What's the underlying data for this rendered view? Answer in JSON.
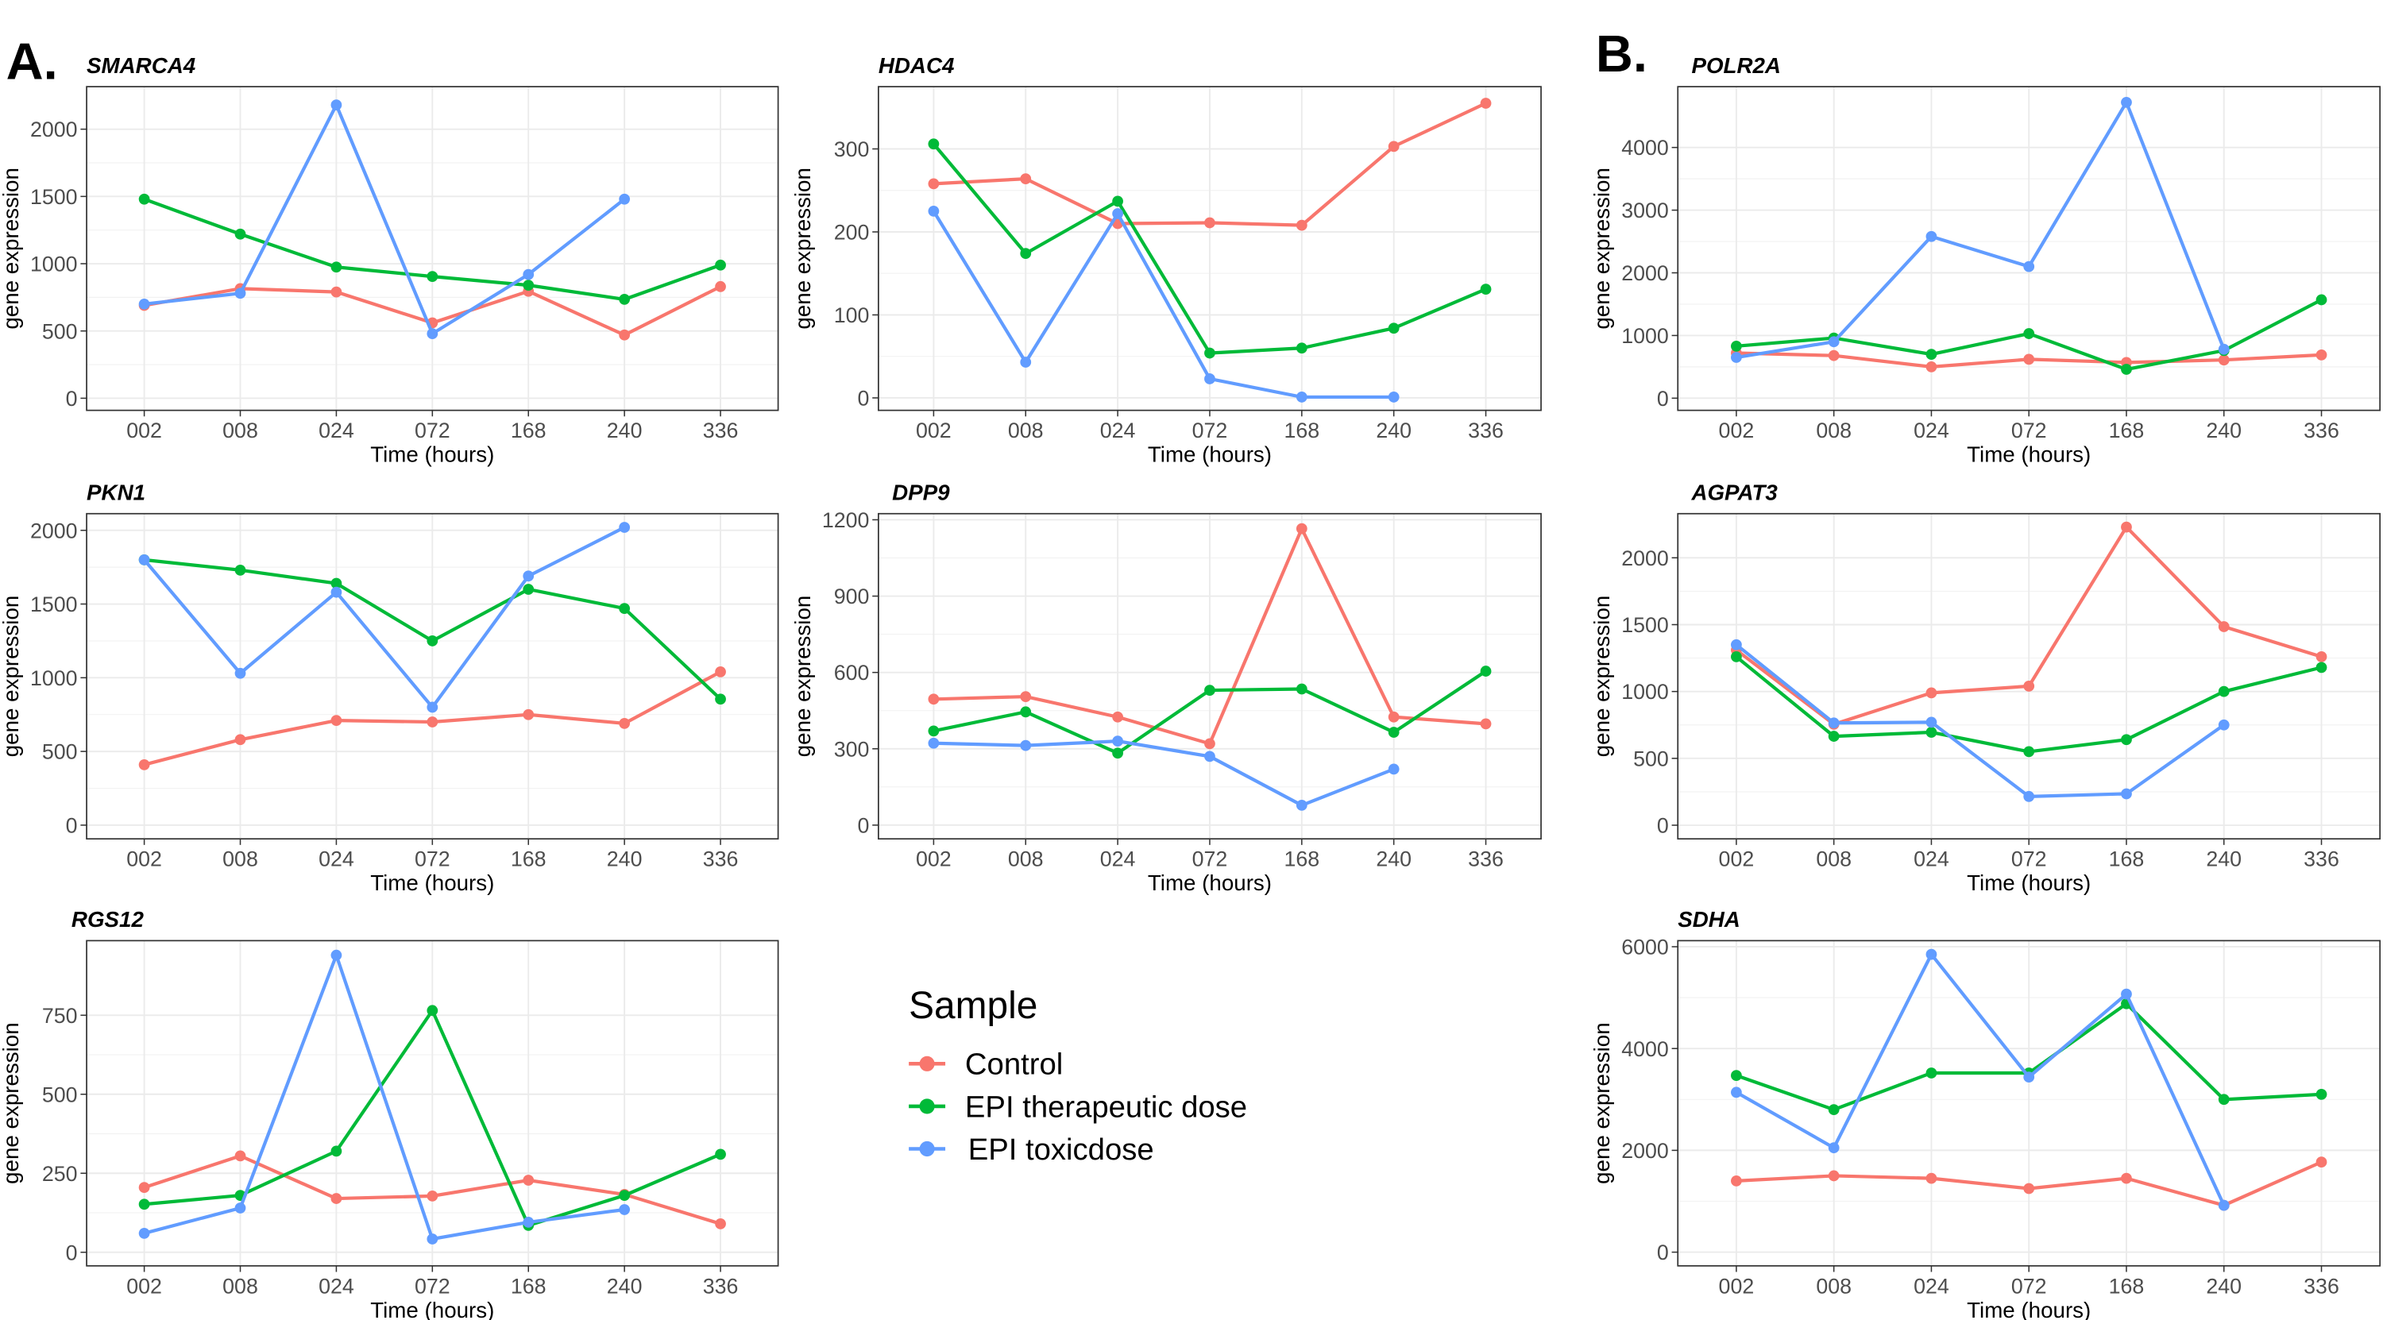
{
  "panel_labels": [
    "A.",
    "B."
  ],
  "legend": {
    "title": "Sample",
    "entries": [
      {
        "name": "Control",
        "color": "#F8766D"
      },
      {
        "name": "EPI therapeutic dose",
        "color": "#00BA38"
      },
      {
        "name": "EPI toxicdose",
        "color": "#619CFF"
      }
    ]
  },
  "chart_data": [
    {
      "type": "line",
      "title": "SMARCA4",
      "xlabel": "Time (hours)",
      "ylabel": "gene expression",
      "categories": [
        "002",
        "008",
        "024",
        "072",
        "168",
        "240",
        "336"
      ],
      "series": [
        {
          "values": [
            690,
            815,
            790,
            560,
            795,
            470,
            830
          ]
        },
        {
          "values": [
            1480,
            1220,
            975,
            905,
            840,
            735,
            990
          ]
        },
        {
          "values": [
            700,
            780,
            2180,
            480,
            920,
            1480,
            null
          ]
        }
      ],
      "ylim": [
        -90,
        2316
      ],
      "yticks": [
        0,
        500,
        1000,
        1500,
        2000
      ],
      "grid": true
    },
    {
      "type": "line",
      "title": "HDAC4",
      "xlabel": "Time (hours)",
      "ylabel": "gene expression",
      "categories": [
        "002",
        "008",
        "024",
        "072",
        "168",
        "240",
        "336"
      ],
      "series": [
        {
          "values": [
            258,
            264,
            210,
            211,
            208,
            303,
            355
          ]
        },
        {
          "values": [
            306,
            174,
            237,
            54,
            60,
            84,
            131
          ]
        },
        {
          "values": [
            225,
            43,
            222,
            23,
            1,
            1,
            null
          ]
        }
      ],
      "ylim": [
        -15,
        375
      ],
      "yticks": [
        0,
        100,
        200,
        300
      ],
      "grid": true
    },
    {
      "type": "line",
      "title": "POLR2A",
      "xlabel": "Time (hours)",
      "ylabel": "gene expression",
      "categories": [
        "002",
        "008",
        "024",
        "072",
        "168",
        "240",
        "336"
      ],
      "series": [
        {
          "values": [
            720,
            680,
            500,
            620,
            570,
            610,
            690
          ]
        },
        {
          "values": [
            830,
            960,
            700,
            1030,
            460,
            760,
            1570
          ]
        },
        {
          "values": [
            650,
            900,
            2580,
            2100,
            4720,
            780,
            null
          ]
        }
      ],
      "ylim": [
        -194,
        4970
      ],
      "yticks": [
        0,
        1000,
        2000,
        3000,
        4000
      ],
      "grid": true
    },
    {
      "type": "line",
      "title": "PKN1",
      "xlabel": "Time (hours)",
      "ylabel": "gene expression",
      "categories": [
        "002",
        "008",
        "024",
        "072",
        "168",
        "240",
        "336"
      ],
      "series": [
        {
          "values": [
            410,
            580,
            710,
            700,
            750,
            690,
            1040
          ]
        },
        {
          "values": [
            1800,
            1730,
            1640,
            1250,
            1600,
            1470,
            855
          ]
        },
        {
          "values": [
            1800,
            1030,
            1580,
            800,
            1690,
            2020,
            null
          ]
        }
      ],
      "ylim": [
        -93,
        2113
      ],
      "yticks": [
        0,
        500,
        1000,
        1500,
        2000
      ],
      "grid": true
    },
    {
      "type": "line",
      "title": "DPP9",
      "xlabel": "Time (hours)",
      "ylabel": "gene expression",
      "categories": [
        "002",
        "008",
        "024",
        "072",
        "168",
        "240",
        "336"
      ],
      "series": [
        {
          "values": [
            495,
            505,
            425,
            320,
            1165,
            425,
            398
          ]
        },
        {
          "values": [
            370,
            445,
            283,
            530,
            535,
            365,
            605
          ]
        },
        {
          "values": [
            322,
            313,
            330,
            270,
            78,
            220,
            null
          ]
        }
      ],
      "ylim": [
        -54,
        1224
      ],
      "yticks": [
        0,
        300,
        600,
        900,
        1200
      ],
      "grid": true
    },
    {
      "type": "line",
      "title": "AGPAT3",
      "xlabel": "Time (hours)",
      "ylabel": "gene expression",
      "categories": [
        "002",
        "008",
        "024",
        "072",
        "168",
        "240",
        "336"
      ],
      "series": [
        {
          "values": [
            1310,
            755,
            990,
            1040,
            2230,
            1485,
            1260
          ]
        },
        {
          "values": [
            1260,
            665,
            695,
            550,
            640,
            1000,
            1180
          ]
        },
        {
          "values": [
            1350,
            765,
            770,
            215,
            235,
            750,
            null
          ]
        }
      ],
      "ylim": [
        -102,
        2330
      ],
      "yticks": [
        0,
        500,
        1000,
        1500,
        2000
      ],
      "grid": true
    },
    {
      "type": "line",
      "title": "RGS12",
      "xlabel": "Time (hours)",
      "ylabel": "gene expression",
      "categories": [
        "002",
        "008",
        "024",
        "072",
        "168",
        "240",
        "336"
      ],
      "series": [
        {
          "values": [
            205,
            305,
            170,
            178,
            228,
            183,
            90
          ]
        },
        {
          "values": [
            152,
            180,
            320,
            765,
            85,
            180,
            310
          ]
        },
        {
          "values": [
            60,
            140,
            940,
            42,
            95,
            135,
            null
          ]
        }
      ],
      "ylim": [
        -43,
        986
      ],
      "yticks": [
        0,
        250,
        500,
        750
      ],
      "grid": true
    },
    {
      "type": "line",
      "title": "SDHA",
      "xlabel": "Time (hours)",
      "ylabel": "gene expression",
      "categories": [
        "002",
        "008",
        "024",
        "072",
        "168",
        "240",
        "336"
      ],
      "series": [
        {
          "values": [
            1400,
            1500,
            1450,
            1250,
            1450,
            920,
            1770
          ]
        },
        {
          "values": [
            3470,
            2800,
            3520,
            3520,
            4880,
            3000,
            3100
          ]
        },
        {
          "values": [
            3140,
            2050,
            5850,
            3440,
            5070,
            920,
            null
          ]
        }
      ],
      "ylim": [
        -269,
        6119
      ],
      "yticks": [
        0,
        2000,
        4000,
        6000
      ],
      "grid": true
    }
  ]
}
